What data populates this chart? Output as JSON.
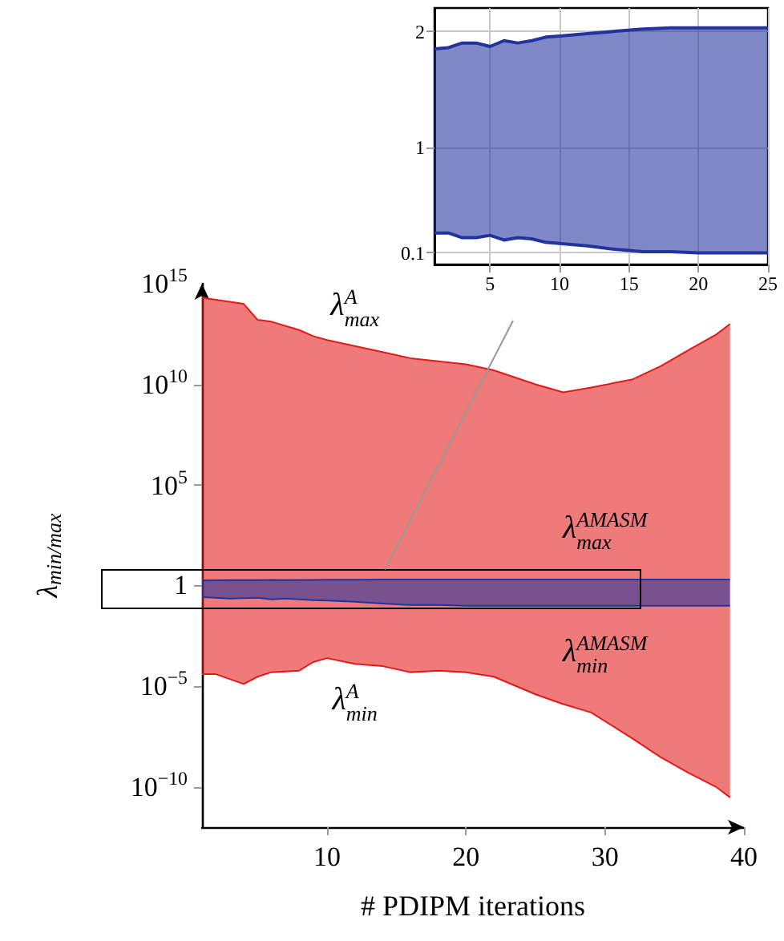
{
  "chart_data": [
    {
      "type": "line",
      "xlabel": "# PDIPM iterations",
      "ylabel": "λ$_{min/max}$",
      "log": "y",
      "marker": "none",
      "legend": false,
      "xlim": [
        1,
        40
      ],
      "xticks": [
        10,
        20,
        30,
        40
      ],
      "ylim": [
        1e-12,
        1000000000000000.0
      ],
      "yticks": [
        {
          "value": 1e-10,
          "label": "10$^{−10}$"
        },
        {
          "value": 1e-05,
          "label": "10$^{−5}$"
        },
        1,
        {
          "value": 100000.0,
          "label": "10$^{5}$"
        },
        {
          "value": 10000000000.0,
          "label": "10$^{10}$"
        },
        {
          "value": 1000000000000000.0,
          "label": "10$^{15}$"
        }
      ],
      "series": [
        {
          "name": "λ$^{A}$$_{max}$",
          "color": "#e41a1a",
          "x": [
            1,
            2,
            4,
            5,
            6,
            8,
            9,
            10,
            12,
            14,
            16,
            18,
            20,
            22,
            25,
            27,
            29,
            32,
            34,
            36,
            38,
            39
          ],
          "values": [
            200000000000000.0,
            160000000000000.0,
            100000000000000.0,
            16000000000000.0,
            13000000000000.0,
            5000000000000.0,
            2500000000000.0,
            1600000000000.0,
            800000000000.0,
            400000000000.0,
            200000000000.0,
            140000000000.0,
            100000000000.0,
            50000000000.0,
            10000000000.0,
            4000000000.0,
            7000000000.0,
            18000000000.0,
            80000000000.0,
            500000000000.0,
            3000000000000.0,
            10000000000000.0
          ],
          "upper": [
            200000000000000.0,
            160000000000000.0,
            100000000000000.0,
            16000000000000.0,
            13000000000000.0,
            5000000000000.0,
            2500000000000.0,
            1600000000000.0,
            800000000000.0,
            400000000000.0,
            200000000000.0,
            140000000000.0,
            100000000000.0,
            50000000000.0,
            10000000000.0,
            4000000000.0,
            7000000000.0,
            18000000000.0,
            80000000000.0,
            500000000000.0,
            3000000000000.0,
            10000000000000.0
          ],
          "lower": [
            4e-05,
            4e-05,
            1.3e-05,
            3e-05,
            5e-05,
            6e-05,
            0.00016,
            0.00025,
            0.00013,
            0.0001,
            5e-05,
            6e-05,
            5e-05,
            3e-05,
            4e-06,
            1.3e-06,
            5e-07,
            2.5e-08,
            3e-09,
            5e-10,
            1e-10,
            3e-11
          ]
        },
        {
          "name": "λ$^{A}$$_{min}$",
          "color": "#e41a1a",
          "x": [
            1,
            2,
            4,
            5,
            6,
            8,
            9,
            10,
            12,
            14,
            16,
            18,
            20,
            22,
            25,
            27,
            29,
            32,
            34,
            36,
            38,
            39
          ],
          "values": [
            4e-05,
            4e-05,
            1.3e-05,
            3e-05,
            5e-05,
            6e-05,
            0.00016,
            0.00025,
            0.00013,
            0.0001,
            5e-05,
            6e-05,
            5e-05,
            3e-05,
            4e-06,
            1.3e-06,
            5e-07,
            2.5e-08,
            3e-09,
            5e-10,
            1e-10,
            3e-11
          ]
        },
        {
          "name": "λ$^{AMASM}$$_{max}$",
          "color": "#2233a0",
          "x": [
            1,
            3,
            5,
            6,
            7,
            9,
            10,
            12,
            14,
            16,
            18,
            20,
            22,
            25,
            30,
            35,
            39
          ],
          "values": [
            1.85,
            1.9,
            1.87,
            1.92,
            1.9,
            1.95,
            1.96,
            1.98,
            2.0,
            2.02,
            2.03,
            2.03,
            2.03,
            2.03,
            2.03,
            2.03,
            2.03
          ],
          "upper": [
            1.85,
            1.9,
            1.87,
            1.92,
            1.9,
            1.95,
            1.96,
            1.98,
            2.0,
            2.02,
            2.03,
            2.03,
            2.03,
            2.03,
            2.03,
            2.03,
            2.03
          ],
          "lower": [
            0.27,
            0.23,
            0.25,
            0.21,
            0.23,
            0.19,
            0.18,
            0.16,
            0.13,
            0.11,
            0.11,
            0.1,
            0.1,
            0.1,
            0.1,
            0.1,
            0.1
          ]
        },
        {
          "name": "λ$^{AMASM}$$_{min}$",
          "color": "#2233a0",
          "x": [
            1,
            3,
            5,
            6,
            7,
            9,
            10,
            12,
            14,
            16,
            18,
            20,
            22,
            25,
            30,
            35,
            39
          ],
          "values": [
            0.27,
            0.23,
            0.25,
            0.21,
            0.23,
            0.19,
            0.18,
            0.16,
            0.13,
            0.11,
            0.11,
            0.1,
            0.1,
            0.1,
            0.1,
            0.1,
            0.1
          ]
        }
      ]
    },
    {
      "type": "line",
      "marker": "none",
      "grid": true,
      "legend": false,
      "xlim": [
        1,
        25
      ],
      "xticks": [
        5,
        10,
        15,
        20,
        25
      ],
      "ylim": [
        0,
        2.2
      ],
      "yticks": [
        0.1,
        1,
        2
      ],
      "series": [
        {
          "color": "#2233a0",
          "x": [
            1,
            2,
            3,
            4,
            5,
            6,
            7,
            8,
            9,
            10,
            12,
            14,
            16,
            18,
            20,
            22,
            25
          ],
          "values": [
            1.85,
            1.86,
            1.9,
            1.9,
            1.87,
            1.92,
            1.9,
            1.92,
            1.95,
            1.96,
            1.98,
            2.0,
            2.02,
            2.03,
            2.03,
            2.03,
            2.03
          ],
          "upper": [
            1.85,
            1.86,
            1.9,
            1.9,
            1.87,
            1.92,
            1.9,
            1.92,
            1.95,
            1.96,
            1.98,
            2.0,
            2.02,
            2.03,
            2.03,
            2.03,
            2.03
          ],
          "lower": [
            0.27,
            0.27,
            0.23,
            0.23,
            0.25,
            0.21,
            0.23,
            0.22,
            0.19,
            0.18,
            0.16,
            0.13,
            0.11,
            0.11,
            0.1,
            0.1,
            0.1
          ]
        },
        {
          "color": "#2233a0",
          "x": [
            1,
            2,
            3,
            4,
            5,
            6,
            7,
            8,
            9,
            10,
            12,
            14,
            16,
            18,
            20,
            22,
            25
          ],
          "values": [
            0.27,
            0.27,
            0.23,
            0.23,
            0.25,
            0.21,
            0.23,
            0.22,
            0.19,
            0.18,
            0.16,
            0.13,
            0.11,
            0.11,
            0.1,
            0.1,
            0.1
          ]
        }
      ]
    }
  ]
}
